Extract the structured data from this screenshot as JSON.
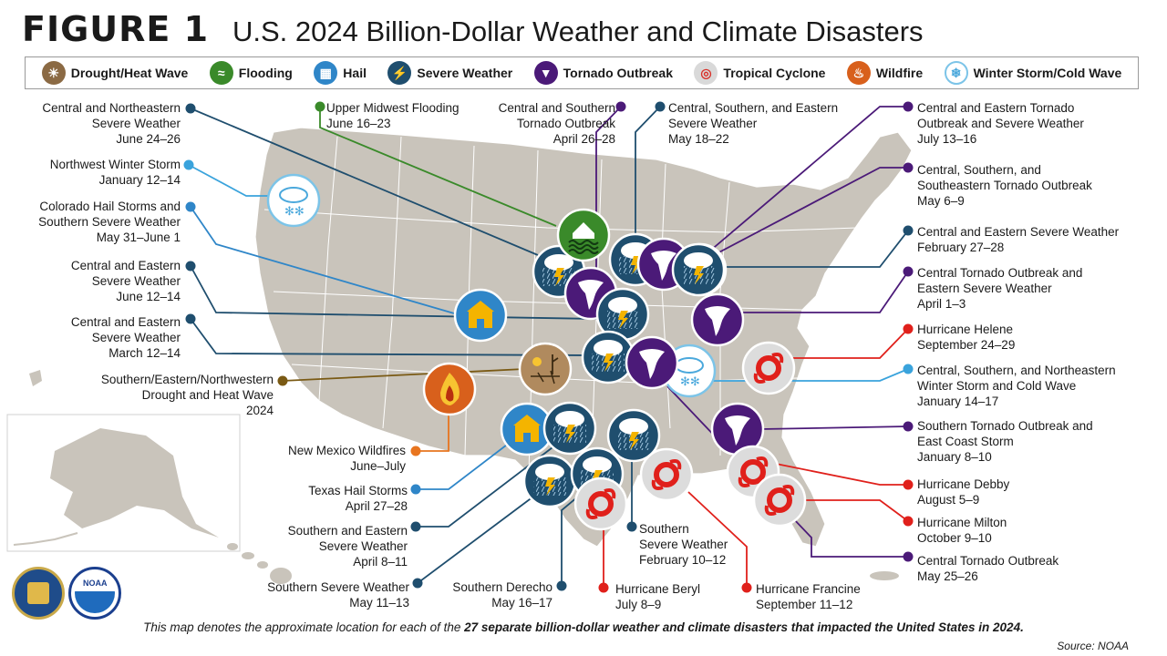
{
  "figure_label": "FIGURE 1",
  "title": "U.S. 2024 Billion-Dollar Weather and Climate Disasters",
  "legend": [
    {
      "label": "Drought/Heat Wave",
      "icon": "drought-icon",
      "color": "#8b6a44"
    },
    {
      "label": "Flooding",
      "icon": "flood-icon",
      "color": "#3a8a2a"
    },
    {
      "label": "Hail",
      "icon": "hail-icon",
      "color": "#2f86c8"
    },
    {
      "label": "Severe Weather",
      "icon": "severe-weather-icon",
      "color": "#1f4e6e"
    },
    {
      "label": "Tornado Outbreak",
      "icon": "tornado-icon",
      "color": "#4b1a78"
    },
    {
      "label": "Tropical Cyclone",
      "icon": "cyclone-icon",
      "color": "#d9d9d9"
    },
    {
      "label": "Wildfire",
      "icon": "wildfire-icon",
      "color": "#d8601c"
    },
    {
      "label": "Winter Storm/Cold Wave",
      "icon": "winter-icon",
      "color": "#7cc4e8"
    }
  ],
  "events": [
    {
      "name": "Central and Northeastern\nSevere Weather",
      "dates": "June 24–26",
      "type": "Severe Weather"
    },
    {
      "name": "Upper Midwest Flooding",
      "dates": "June 16–23",
      "type": "Flooding"
    },
    {
      "name": "Central and Southern\nTornado Outbreak",
      "dates": "April 26–28",
      "type": "Tornado Outbreak"
    },
    {
      "name": "Central, Southern, and Eastern\nSevere Weather",
      "dates": "May 18–22",
      "type": "Severe Weather"
    },
    {
      "name": "Central and Eastern Tornado\nOutbreak and Severe Weather",
      "dates": "July 13–16",
      "type": "Tornado Outbreak"
    },
    {
      "name": "Northwest Winter Storm",
      "dates": "January 12–14",
      "type": "Winter Storm/Cold Wave"
    },
    {
      "name": "Central, Southern, and\nSoutheastern Tornado Outbreak",
      "dates": "May 6–9",
      "type": "Tornado Outbreak"
    },
    {
      "name": "Colorado Hail Storms and\nSouthern Severe Weather",
      "dates": "May 31–June 1",
      "type": "Hail"
    },
    {
      "name": "Central and Eastern Severe Weather",
      "dates": "February 27–28",
      "type": "Severe Weather"
    },
    {
      "name": "Central and Eastern\nSevere Weather",
      "dates": "June 12–14",
      "type": "Severe Weather"
    },
    {
      "name": "Central Tornado Outbreak and\nEastern Severe Weather",
      "dates": "April 1–3",
      "type": "Tornado Outbreak"
    },
    {
      "name": "Central and Eastern\nSevere Weather",
      "dates": "March 12–14",
      "type": "Severe Weather"
    },
    {
      "name": "Hurricane Helene",
      "dates": "September 24–29",
      "type": "Tropical Cyclone"
    },
    {
      "name": "Southern/Eastern/Northwestern\nDrought and Heat Wave",
      "dates": "2024",
      "type": "Drought/Heat Wave"
    },
    {
      "name": "Central, Southern, and Northeastern\nWinter Storm and Cold Wave",
      "dates": "January 14–17",
      "type": "Winter Storm/Cold Wave"
    },
    {
      "name": "Southern Tornado Outbreak and\nEast Coast Storm",
      "dates": "January 8–10",
      "type": "Tornado Outbreak"
    },
    {
      "name": "New Mexico Wildfires",
      "dates": "June–July",
      "type": "Wildfire"
    },
    {
      "name": "Hurricane Debby",
      "dates": "August 5–9",
      "type": "Tropical Cyclone"
    },
    {
      "name": "Texas Hail Storms",
      "dates": "April 27–28",
      "type": "Hail"
    },
    {
      "name": "Hurricane Milton",
      "dates": "October 9–10",
      "type": "Tropical Cyclone"
    },
    {
      "name": "Southern and Eastern\nSevere Weather",
      "dates": "April 8–11",
      "type": "Severe Weather"
    },
    {
      "name": "Southern\nSevere Weather",
      "dates": "February 10–12",
      "type": "Severe Weather"
    },
    {
      "name": "Central Tornado Outbreak",
      "dates": "May 25–26",
      "type": "Tornado Outbreak"
    },
    {
      "name": "Southern Severe Weather",
      "dates": "May 11–13",
      "type": "Severe Weather"
    },
    {
      "name": "Southern Derecho",
      "dates": "May 16–17",
      "type": "Severe Weather"
    },
    {
      "name": "Hurricane Beryl",
      "dates": "July 8–9",
      "type": "Tropical Cyclone"
    },
    {
      "name": "Hurricane Francine",
      "dates": "September 11–12",
      "type": "Tropical Cyclone"
    }
  ],
  "footnote_prefix": "This map denotes the approximate location for each of the ",
  "footnote_bold": "27 separate billion-dollar weather and climate disasters that impacted the United States in 2024.",
  "source": "Source: NOAA",
  "agency_seals": [
    "doc-seal-icon",
    "noaa-logo-icon"
  ]
}
